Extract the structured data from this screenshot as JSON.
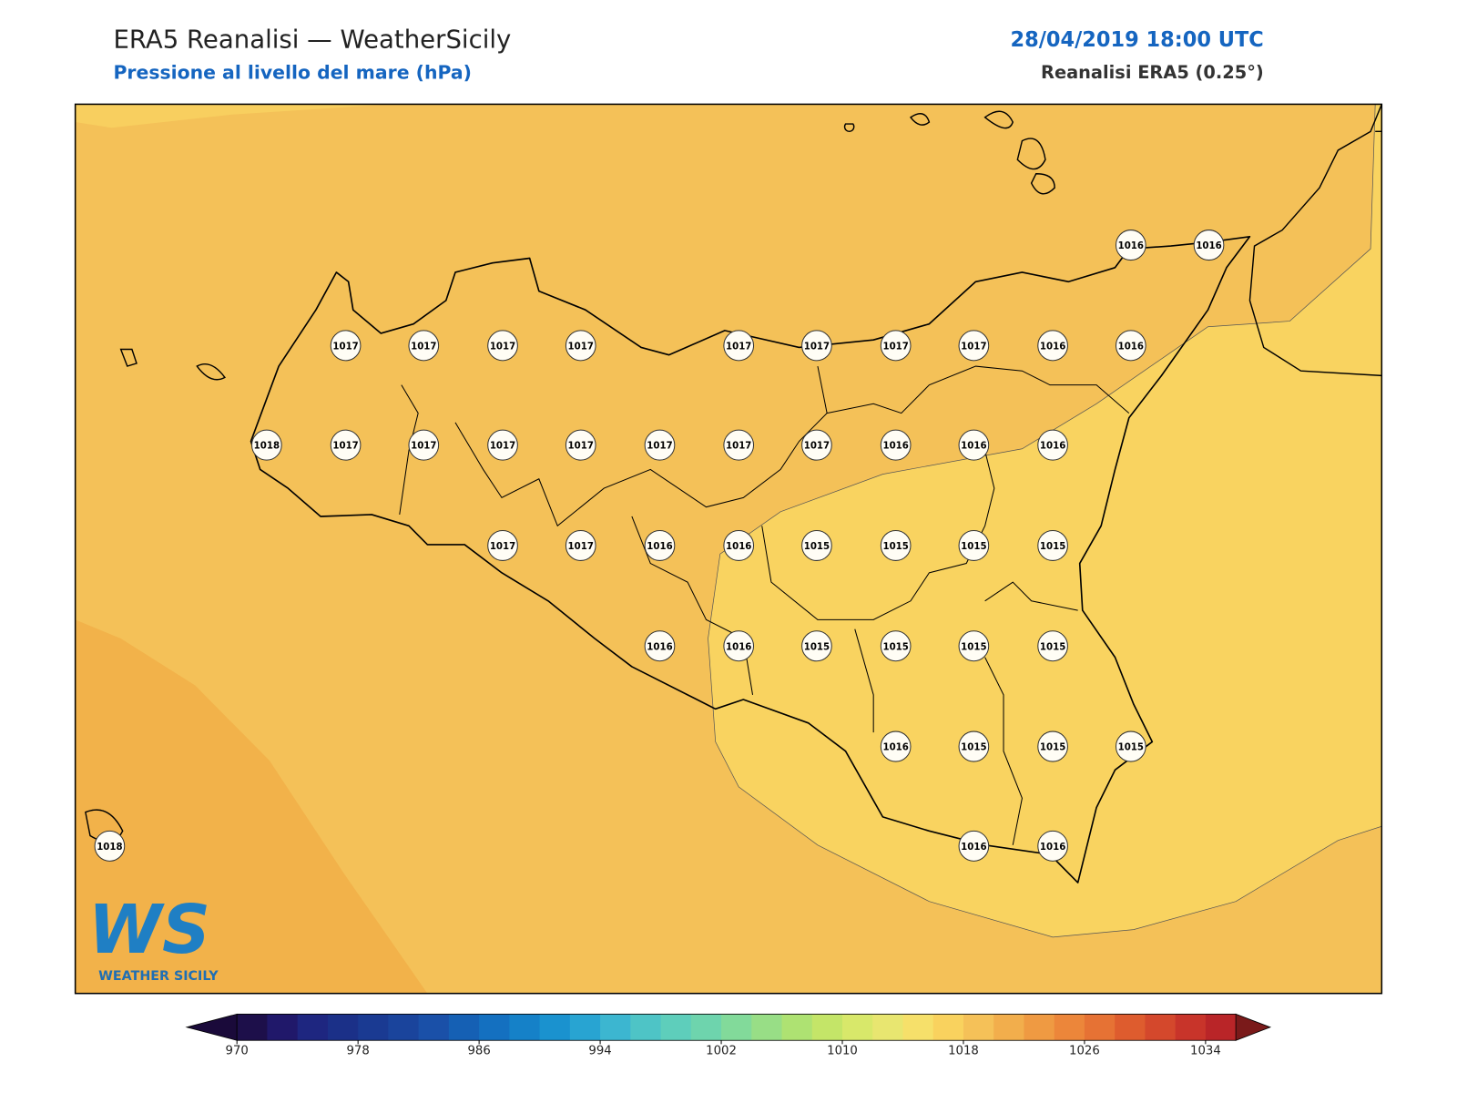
{
  "header": {
    "title": "ERA5 Reanalisi — WeatherSicily",
    "subtitle": "Pressione al livello del mare (hPa)",
    "datetime": "28/04/2019 18:00 UTC",
    "source": "Reanalisi ERA5 (0.25°)"
  },
  "map": {
    "stations": [
      1016,
      1016,
      1017,
      1017,
      1017,
      1017,
      1017,
      1017,
      1017,
      1017,
      1016,
      1016,
      1018,
      1017,
      1017,
      1017,
      1017,
      1017,
      1017,
      1017,
      1016,
      1016,
      1016,
      1017,
      1017,
      1016,
      1016,
      1015,
      1015,
      1015,
      1015,
      1016,
      1016,
      1015,
      1015,
      1015,
      1015,
      1016,
      1015,
      1015,
      1015,
      1018,
      1016,
      1016
    ]
  },
  "logo": {
    "mark": "WS",
    "text": "WEATHER SICILY"
  },
  "colorbar": {
    "lim": [
      970,
      1036
    ],
    "ticks": [
      970,
      978,
      986,
      994,
      1002,
      1010,
      1018,
      1026,
      1034
    ],
    "colors": [
      "#1d0f4a",
      "#20186a",
      "#1e2680",
      "#1b3088",
      "#1a3a92",
      "#1a449c",
      "#1a50a8",
      "#1560b4",
      "#1470c0",
      "#1581c8",
      "#1a92cf",
      "#28a4d2",
      "#3cb6d0",
      "#4ec4c6",
      "#5ecebb",
      "#6ed4ad",
      "#82da9a",
      "#98de86",
      "#aee272",
      "#c4e568",
      "#d8e86a",
      "#e8e670",
      "#f6e06a",
      "#f9d25e",
      "#f5c158",
      "#f2ae4c",
      "#ef9a42",
      "#ec863a",
      "#e67234",
      "#de5c2e",
      "#d4482c",
      "#c8342a",
      "#b92528"
    ],
    "extend_colors": [
      "#1a0a3a",
      "#7a1a1a"
    ]
  }
}
